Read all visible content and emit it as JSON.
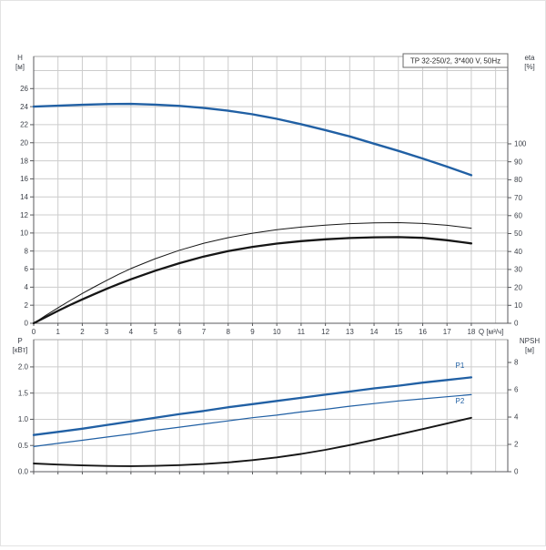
{
  "colors": {
    "blue": "#2160a4",
    "black": "#161616",
    "grid": "#cccccc",
    "border_light": "#aaaaaa",
    "axis_dark": "#58595c",
    "text": "#3c4048",
    "title_text": "#2b2b2b",
    "background": "#ffffff"
  },
  "chart_data": [
    {
      "id": "head-efficiency-chart",
      "type": "line",
      "title": "TP 32-250/2, 3*400 V, 50Hz",
      "legend_position": "none",
      "grid": true,
      "x_axis": {
        "label": "Q [м³/ч]",
        "min": 0,
        "max": 19.5,
        "tick_values": [
          0,
          1,
          2,
          3,
          4,
          5,
          6,
          7,
          8,
          9,
          10,
          11,
          12,
          13,
          14,
          15,
          16,
          17,
          18
        ],
        "grid_values": [
          1,
          2,
          3,
          4,
          5,
          6,
          7,
          8,
          9,
          10,
          11,
          12,
          13,
          14,
          15,
          16,
          17,
          18,
          19
        ],
        "show_tick_labels": true
      },
      "y_left": {
        "label": [
          "H",
          "[м]"
        ],
        "min": 0,
        "max": 29.56,
        "tick_values": [
          0,
          2,
          4,
          6,
          8,
          10,
          12,
          14,
          16,
          18,
          20,
          22,
          24,
          26
        ],
        "tick_labels": [
          "0",
          "2",
          "4",
          "6",
          "8",
          "10",
          "12",
          "14",
          "16",
          "18",
          "20",
          "22",
          "24",
          "26"
        ],
        "grid_values": [
          2,
          4,
          6,
          8,
          10,
          12,
          14,
          16,
          18,
          20,
          22,
          24,
          26,
          28
        ]
      },
      "y_right": {
        "label": [
          "eta",
          "[%]"
        ],
        "min": 0,
        "max": 148.7,
        "tick_values": [
          0,
          10,
          20,
          30,
          40,
          50,
          60,
          70,
          80,
          90,
          100
        ],
        "tick_labels": [
          "0",
          "10",
          "20",
          "30",
          "40",
          "50",
          "60",
          "70",
          "80",
          "90",
          "100"
        ]
      },
      "series": [
        {
          "name": "head-curve",
          "label": "H",
          "axis": "left",
          "color_key": "blue",
          "width": 2.4,
          "x": [
            0,
            1,
            2,
            3,
            4,
            5,
            6,
            7,
            8,
            9,
            10,
            11,
            12,
            13,
            14,
            15,
            16,
            17,
            18
          ],
          "y": [
            24.0,
            24.1,
            24.2,
            24.28,
            24.3,
            24.22,
            24.08,
            23.85,
            23.55,
            23.15,
            22.65,
            22.05,
            21.4,
            20.7,
            19.9,
            19.1,
            18.25,
            17.35,
            16.4
          ]
        },
        {
          "name": "efficiency-pump-curve",
          "label": "eta1",
          "axis": "right",
          "color_key": "black",
          "width": 1.0,
          "x": [
            0,
            0.5,
            1,
            1.5,
            2,
            2.5,
            3,
            3.5,
            4,
            5,
            6,
            7,
            8,
            9,
            10,
            11,
            12,
            13,
            14,
            15,
            16,
            17,
            18
          ],
          "y": [
            0,
            4.4,
            8.6,
            12.7,
            16.6,
            20.3,
            23.9,
            27.3,
            30.5,
            36,
            40.7,
            44.6,
            47.7,
            50.2,
            52.1,
            53.6,
            54.7,
            55.5,
            56,
            56.1,
            55.6,
            54.6,
            53
          ]
        },
        {
          "name": "efficiency-pump-motor-curve",
          "label": "eta2",
          "axis": "right",
          "color_key": "black",
          "width": 2.3,
          "x": [
            0,
            0.5,
            1,
            1.5,
            2,
            2.5,
            3,
            3.5,
            4,
            5,
            6,
            7,
            8,
            9,
            10,
            11,
            12,
            13,
            14,
            15,
            16,
            17,
            18
          ],
          "y": [
            0,
            3.5,
            6.9,
            10.2,
            13.3,
            16.3,
            19.2,
            21.9,
            24.5,
            29.3,
            33.5,
            37.2,
            40.2,
            42.6,
            44.4,
            45.8,
            46.8,
            47.5,
            47.9,
            48,
            47.6,
            46.3,
            44.5
          ]
        }
      ],
      "annotations": []
    },
    {
      "id": "power-npsh-chart",
      "type": "line",
      "title": "",
      "legend_position": "none",
      "grid": true,
      "x_axis": {
        "label": "",
        "min": 0,
        "max": 19.5,
        "tick_values": [
          0,
          1,
          2,
          3,
          4,
          5,
          6,
          7,
          8,
          9,
          10,
          11,
          12,
          13,
          14,
          15,
          16,
          17,
          18
        ],
        "grid_values": [
          1,
          2,
          3,
          4,
          5,
          6,
          7,
          8,
          9,
          10,
          11,
          12,
          13,
          14,
          15,
          16,
          17,
          18,
          19
        ],
        "show_tick_labels": false
      },
      "y_left": {
        "label": [
          "P",
          "[кВт]"
        ],
        "min": 0,
        "max": 2.52,
        "tick_values": [
          0,
          0.5,
          1.0,
          1.5,
          2.0
        ],
        "tick_labels": [
          "0.0",
          "0.5",
          "1.0",
          "1.5",
          "2.0"
        ],
        "grid_values": [
          0.5,
          1.0,
          1.5,
          2.0
        ]
      },
      "y_right": {
        "label": [
          "NPSH",
          "[м]"
        ],
        "min": 0,
        "max": 9.67,
        "tick_values": [
          0,
          2,
          4,
          6,
          8
        ],
        "tick_labels": [
          "0",
          "2",
          "4",
          "6",
          "8"
        ]
      },
      "series": [
        {
          "name": "power-p1-curve",
          "label": "P1",
          "axis": "left",
          "color_key": "blue",
          "width": 2.3,
          "x": [
            0,
            1,
            2,
            3,
            4,
            5,
            6,
            7,
            8,
            9,
            10,
            11,
            12,
            13,
            14,
            15,
            16,
            17,
            18
          ],
          "y": [
            0.7,
            0.76,
            0.82,
            0.89,
            0.96,
            1.03,
            1.1,
            1.16,
            1.23,
            1.29,
            1.35,
            1.41,
            1.47,
            1.53,
            1.59,
            1.64,
            1.7,
            1.75,
            1.8
          ]
        },
        {
          "name": "power-p2-curve",
          "label": "P2",
          "axis": "left",
          "color_key": "blue",
          "width": 1.2,
          "x": [
            0,
            1,
            2,
            3,
            4,
            5,
            6,
            7,
            8,
            9,
            10,
            11,
            12,
            13,
            14,
            15,
            16,
            17,
            18
          ],
          "y": [
            0.48,
            0.54,
            0.6,
            0.66,
            0.72,
            0.79,
            0.85,
            0.91,
            0.97,
            1.03,
            1.08,
            1.14,
            1.19,
            1.25,
            1.3,
            1.35,
            1.39,
            1.43,
            1.47
          ]
        },
        {
          "name": "npsh-curve",
          "label": "NPSH",
          "axis": "right",
          "color_key": "black",
          "width": 1.9,
          "x": [
            0,
            1,
            2,
            3,
            4,
            5,
            6,
            7,
            8,
            9,
            10,
            11,
            12,
            13,
            14,
            15,
            16,
            17,
            18
          ],
          "y": [
            0.6,
            0.52,
            0.46,
            0.42,
            0.41,
            0.43,
            0.48,
            0.56,
            0.68,
            0.85,
            1.05,
            1.3,
            1.6,
            1.95,
            2.33,
            2.72,
            3.12,
            3.53,
            3.95
          ]
        }
      ],
      "annotations": [
        {
          "text": "P1",
          "axis": "left",
          "x": 17.35,
          "y": 1.98,
          "color_key": "blue"
        },
        {
          "text": "P2",
          "axis": "left",
          "x": 17.35,
          "y": 1.3,
          "color_key": "blue"
        }
      ]
    }
  ]
}
